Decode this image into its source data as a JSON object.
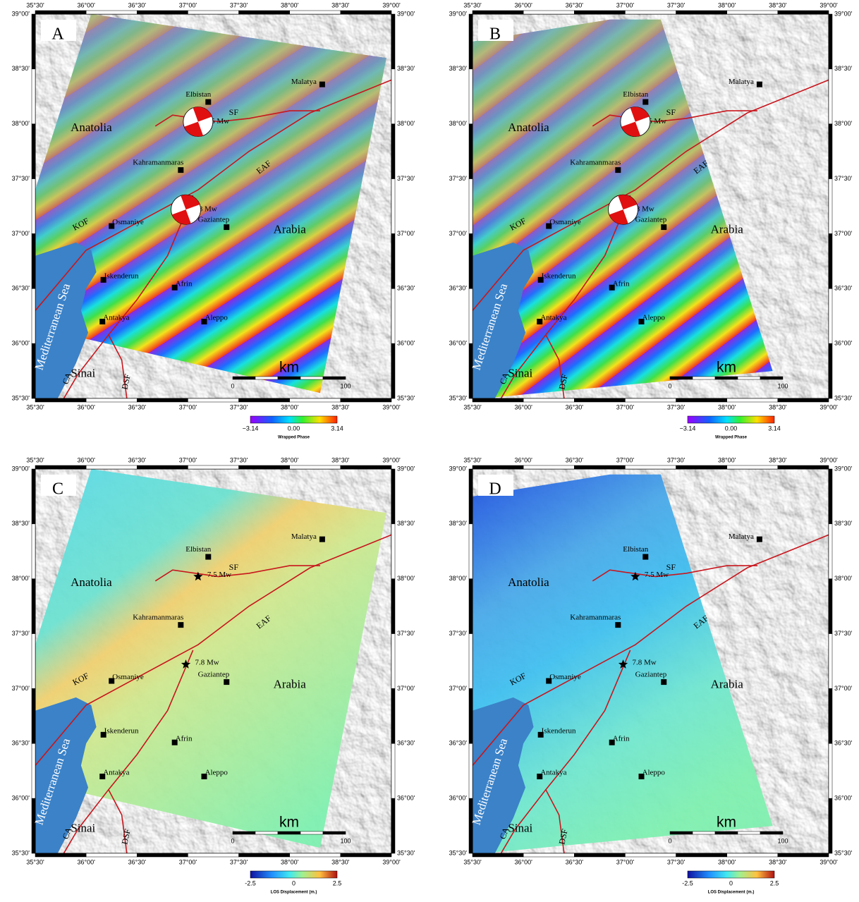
{
  "panels": [
    {
      "label": "A",
      "colorbar": {
        "ticks": [
          "−3.14",
          "0.00",
          "3.14"
        ],
        "title": "Wrapped Phase"
      }
    },
    {
      "label": "B",
      "colorbar": {
        "ticks": [
          "−3.14",
          "0.00",
          "3.14"
        ],
        "title": "Wrapped Phase"
      }
    },
    {
      "label": "C",
      "colorbar": {
        "ticks": [
          "-2.5",
          "0",
          "2.5"
        ],
        "title": "LOS Displacement (m.)"
      }
    },
    {
      "label": "D",
      "colorbar": {
        "ticks": [
          "-2.5",
          "0",
          "2.5"
        ],
        "title": "LOS Displacement (m.)"
      }
    }
  ],
  "lon_ticks": [
    "35°30'",
    "36°00'",
    "36°30'",
    "37°00'",
    "37°30'",
    "38°00'",
    "38°30'",
    "39°00'"
  ],
  "lat_ticks": [
    "39°00'",
    "38°30'",
    "38°00'",
    "37°30'",
    "37°00'",
    "36°30'",
    "36°00'",
    "35°30'"
  ],
  "regions": [
    "Anatolia",
    "Arabia",
    "Mediterranean Sea",
    "Sinai"
  ],
  "cities": [
    "Malatya",
    "Elbistan",
    "Kahramanmaras",
    "Osmaniye",
    "Gaziantep",
    "Iskenderun",
    "Afrin",
    "Antakya",
    "Aleppo"
  ],
  "faults": [
    "SF",
    "EAF",
    "KOF",
    "DSF",
    "CA"
  ],
  "events": [
    "7.5 Mw",
    "7.8 Mw"
  ],
  "scale": {
    "unit": "km",
    "ticks": [
      "0",
      "100"
    ]
  }
}
